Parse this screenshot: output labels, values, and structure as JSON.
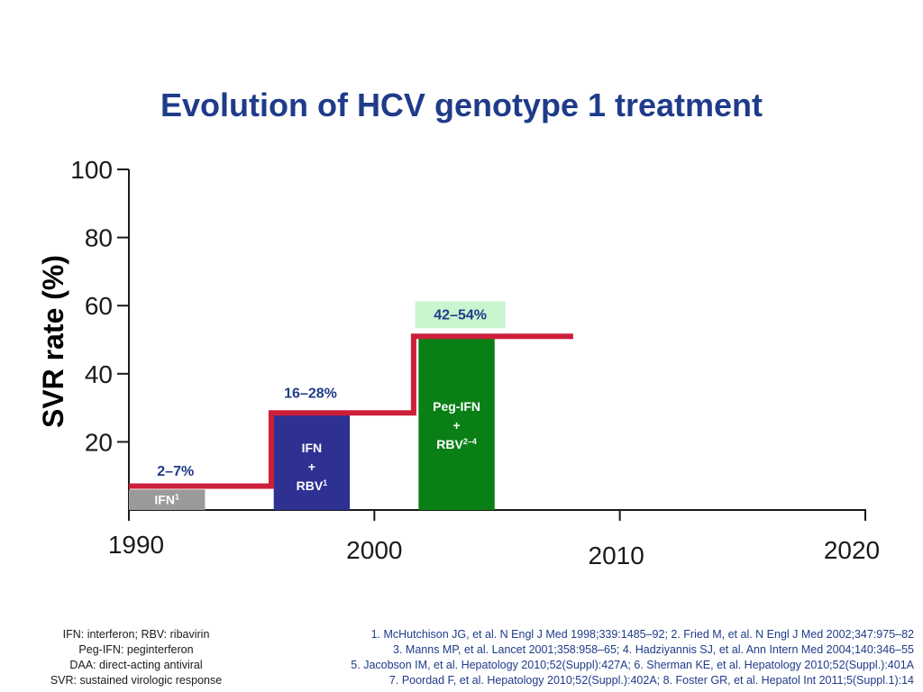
{
  "chart_data": {
    "type": "bar",
    "title": "Evolution of HCV genotype 1 treatment",
    "ylabel": "SVR rate (%)",
    "xlabel": "",
    "xlim": [
      1990,
      2020
    ],
    "ylim": [
      0,
      100
    ],
    "yticks": [
      {
        "value": 20,
        "label": "20"
      },
      {
        "value": 40,
        "label": "40"
      },
      {
        "value": 60,
        "label": "60"
      },
      {
        "value": 80,
        "label": "80"
      },
      {
        "value": 100,
        "label": "100"
      }
    ],
    "xticks": [
      {
        "value": 1990,
        "label": "1990"
      },
      {
        "value": 2000,
        "label": "2000"
      },
      {
        "value": 2010,
        "label": "2010"
      },
      {
        "value": 2020,
        "label": "2020"
      }
    ],
    "bars": [
      {
        "id": "ifn",
        "line1": "IFN",
        "sup1": "1",
        "plus": "",
        "line2": "",
        "sup2": "",
        "x_start": 1990,
        "x_end": 1993.1,
        "value": 6,
        "color": "#9a9a9a",
        "text_color": "#ffffff"
      },
      {
        "id": "ifn-rbv",
        "line1": "IFN",
        "sup1": "",
        "plus": "+",
        "line2": "RBV",
        "sup2": "1",
        "x_start": 1995.9,
        "x_end": 1999,
        "value": 28,
        "color": "#2e3192",
        "text_color": "#ffffff"
      },
      {
        "id": "peg-ifn-rbv",
        "line1": "Peg-IFN",
        "sup1": "",
        "plus": "+",
        "line2": "RBV",
        "sup2": "2–4",
        "x_start": 2001.8,
        "x_end": 2004.9,
        "value": 51,
        "color": "#0a7f16",
        "text_color": "#ffffff"
      }
    ],
    "svr_step": [
      {
        "x_start": 1990,
        "x_end": 1995.8,
        "value": 7
      },
      {
        "x_start": 1995.8,
        "x_end": 2001.6,
        "value": 28.5
      },
      {
        "x_start": 2001.6,
        "x_end": 2008.1,
        "value": 51
      }
    ],
    "annotations": [
      {
        "id": "range-ifn",
        "text": "2–7%",
        "x": 1991.9,
        "y": 10,
        "color": "#1f3b8a",
        "box": ""
      },
      {
        "id": "range-ifn-rbv",
        "text": "16–28%",
        "x": 1997.4,
        "y": 33,
        "color": "#1f3b8a",
        "box": ""
      },
      {
        "id": "range-peg",
        "text": "42–54%",
        "x": 2003.5,
        "y": 56,
        "color": "#1f3b8a",
        "box": "#c9f5cf"
      }
    ],
    "colors": {
      "axis": "#1a1a1a",
      "step": "#cc1f3a",
      "title": "#1f3b8a"
    }
  },
  "footnotes": {
    "abbreviations": [
      "IFN: interferon; RBV: ribavirin",
      "Peg-IFN: peginterferon",
      "DAA: direct-acting antiviral",
      "SVR: sustained virologic response"
    ],
    "references": [
      "1. McHutchison JG, et al. N Engl J Med 1998;339:1485–92; 2. Fried M, et al. N Engl J Med 2002;347:975–82",
      "3. Manns MP, et al. Lancet 2001;358:958–65; 4. Hadziyannis SJ, et al. Ann Intern Med 2004;140:346–55",
      "5. Jacobson IM, et al. Hepatology 2010;52(Suppl):427A; 6. Sherman KE, et al. Hepatology 2010;52(Suppl.):401A",
      "7. Poordad F, et al. Hepatology 2010;52(Suppl.):402A; 8. Foster GR, et al. Hepatol Int 2011;5(Suppl.1):14"
    ]
  }
}
